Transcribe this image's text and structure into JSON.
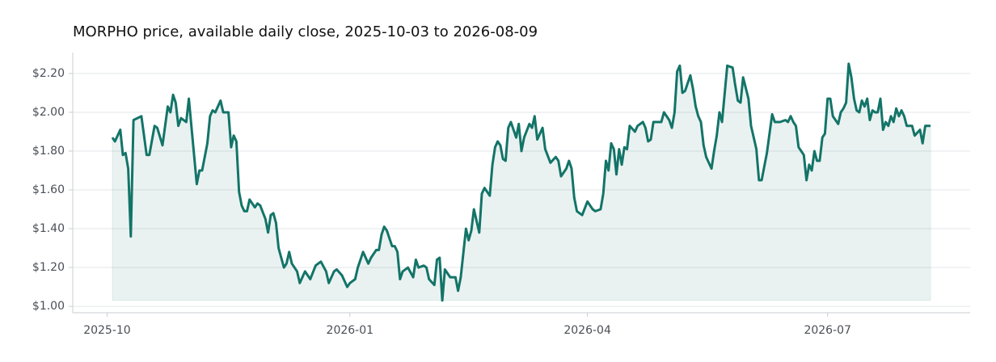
{
  "chart_data": {
    "type": "line",
    "title": "MORPHO price, available daily close, 2025-10-03 to 2026-08-09",
    "x": [
      "2025-10-03",
      "2025-10-04",
      "2025-10-06",
      "2025-10-07",
      "2025-10-08",
      "2025-10-09",
      "2025-10-10",
      "2025-10-11",
      "2025-10-14",
      "2025-10-16",
      "2025-10-17",
      "2025-10-19",
      "2025-10-20",
      "2025-10-22",
      "2025-10-24",
      "2025-10-25",
      "2025-10-26",
      "2025-10-27",
      "2025-10-28",
      "2025-10-29",
      "2025-10-31",
      "2025-11-01",
      "2025-11-04",
      "2025-11-05",
      "2025-11-06",
      "2025-11-08",
      "2025-11-09",
      "2025-11-10",
      "2025-11-11",
      "2025-11-13",
      "2025-11-14",
      "2025-11-16",
      "2025-11-17",
      "2025-11-18",
      "2025-11-19",
      "2025-11-20",
      "2025-11-21",
      "2025-11-22",
      "2025-11-23",
      "2025-11-24",
      "2025-11-26",
      "2025-11-27",
      "2025-11-28",
      "2025-11-30",
      "2025-12-01",
      "2025-12-02",
      "2025-12-03",
      "2025-12-04",
      "2025-12-05",
      "2025-12-07",
      "2025-12-08",
      "2025-12-09",
      "2025-12-10",
      "2025-12-12",
      "2025-12-13",
      "2025-12-15",
      "2025-12-17",
      "2025-12-19",
      "2025-12-20",
      "2025-12-21",
      "2025-12-23",
      "2025-12-24",
      "2025-12-26",
      "2025-12-27",
      "2025-12-29",
      "2025-12-31",
      "2026-01-01",
      "2026-01-03",
      "2026-01-04",
      "2026-01-06",
      "2026-01-08",
      "2026-01-09",
      "2026-01-11",
      "2026-01-12",
      "2026-01-13",
      "2026-01-14",
      "2026-01-15",
      "2026-01-17",
      "2026-01-18",
      "2026-01-19",
      "2026-01-20",
      "2026-01-21",
      "2026-01-23",
      "2026-01-25",
      "2026-01-26",
      "2026-01-27",
      "2026-01-29",
      "2026-01-30",
      "2026-01-31",
      "2026-02-02",
      "2026-02-03",
      "2026-02-04",
      "2026-02-05",
      "2026-02-06",
      "2026-02-08",
      "2026-02-10",
      "2026-02-11",
      "2026-02-12",
      "2026-02-14",
      "2026-02-15",
      "2026-02-16",
      "2026-02-17",
      "2026-02-19",
      "2026-02-20",
      "2026-02-21",
      "2026-02-23",
      "2026-02-24",
      "2026-02-25",
      "2026-02-26",
      "2026-02-27",
      "2026-02-28",
      "2026-03-01",
      "2026-03-02",
      "2026-03-03",
      "2026-03-05",
      "2026-03-06",
      "2026-03-07",
      "2026-03-08",
      "2026-03-10",
      "2026-03-11",
      "2026-03-12",
      "2026-03-13",
      "2026-03-15",
      "2026-03-16",
      "2026-03-18",
      "2026-03-20",
      "2026-03-21",
      "2026-03-22",
      "2026-03-24",
      "2026-03-25",
      "2026-03-26",
      "2026-03-27",
      "2026-03-28",
      "2026-03-29",
      "2026-03-30",
      "2026-04-01",
      "2026-04-03",
      "2026-04-04",
      "2026-04-06",
      "2026-04-07",
      "2026-04-08",
      "2026-04-09",
      "2026-04-10",
      "2026-04-11",
      "2026-04-12",
      "2026-04-13",
      "2026-04-14",
      "2026-04-15",
      "2026-04-16",
      "2026-04-17",
      "2026-04-19",
      "2026-04-20",
      "2026-04-22",
      "2026-04-23",
      "2026-04-24",
      "2026-04-25",
      "2026-04-26",
      "2026-04-27",
      "2026-04-29",
      "2026-04-30",
      "2026-05-02",
      "2026-05-03",
      "2026-05-04",
      "2026-05-05",
      "2026-05-06",
      "2026-05-07",
      "2026-05-08",
      "2026-05-10",
      "2026-05-11",
      "2026-05-12",
      "2026-05-13",
      "2026-05-14",
      "2026-05-15",
      "2026-05-16",
      "2026-05-18",
      "2026-05-19",
      "2026-05-20",
      "2026-05-21",
      "2026-05-22",
      "2026-05-24",
      "2026-05-26",
      "2026-05-27",
      "2026-05-28",
      "2026-05-29",
      "2026-05-30",
      "2026-06-01",
      "2026-06-02",
      "2026-06-04",
      "2026-06-05",
      "2026-06-06",
      "2026-06-08",
      "2026-06-10",
      "2026-06-11",
      "2026-06-13",
      "2026-06-15",
      "2026-06-16",
      "2026-06-17",
      "2026-06-18",
      "2026-06-19",
      "2026-06-20",
      "2026-06-21",
      "2026-06-22",
      "2026-06-23",
      "2026-06-24",
      "2026-06-25",
      "2026-06-26",
      "2026-06-27",
      "2026-06-28",
      "2026-06-29",
      "2026-06-30",
      "2026-07-01",
      "2026-07-02",
      "2026-07-03",
      "2026-07-04",
      "2026-07-05",
      "2026-07-06",
      "2026-07-07",
      "2026-07-08",
      "2026-07-09",
      "2026-07-10",
      "2026-07-11",
      "2026-07-12",
      "2026-07-13",
      "2026-07-14",
      "2026-07-15",
      "2026-07-16",
      "2026-07-17",
      "2026-07-18",
      "2026-07-19",
      "2026-07-20",
      "2026-07-21",
      "2026-07-22",
      "2026-07-23",
      "2026-07-24",
      "2026-07-25",
      "2026-07-26",
      "2026-07-27",
      "2026-07-28",
      "2026-07-29",
      "2026-07-30",
      "2026-07-31",
      "2026-08-02",
      "2026-08-03",
      "2026-08-05",
      "2026-08-06",
      "2026-08-07",
      "2026-08-09"
    ],
    "values": [
      1.87,
      1.85,
      1.91,
      1.78,
      1.79,
      1.71,
      1.36,
      1.96,
      1.98,
      1.78,
      1.78,
      1.93,
      1.92,
      1.83,
      2.03,
      2.0,
      2.09,
      2.05,
      1.93,
      1.97,
      1.95,
      2.07,
      1.63,
      1.7,
      1.7,
      1.84,
      1.98,
      2.01,
      2.0,
      2.06,
      2.0,
      2.0,
      1.82,
      1.88,
      1.85,
      1.59,
      1.52,
      1.49,
      1.49,
      1.55,
      1.51,
      1.53,
      1.52,
      1.45,
      1.38,
      1.47,
      1.48,
      1.43,
      1.3,
      1.2,
      1.22,
      1.28,
      1.22,
      1.18,
      1.12,
      1.18,
      1.14,
      1.21,
      1.22,
      1.23,
      1.18,
      1.12,
      1.18,
      1.19,
      1.16,
      1.1,
      1.12,
      1.14,
      1.2,
      1.28,
      1.22,
      1.25,
      1.29,
      1.29,
      1.37,
      1.41,
      1.39,
      1.31,
      1.31,
      1.28,
      1.14,
      1.18,
      1.2,
      1.15,
      1.24,
      1.2,
      1.21,
      1.2,
      1.14,
      1.11,
      1.24,
      1.25,
      1.03,
      1.19,
      1.15,
      1.15,
      1.08,
      1.15,
      1.4,
      1.34,
      1.39,
      1.5,
      1.38,
      1.58,
      1.61,
      1.57,
      1.73,
      1.82,
      1.85,
      1.83,
      1.76,
      1.75,
      1.92,
      1.95,
      1.87,
      1.94,
      1.8,
      1.87,
      1.94,
      1.92,
      1.98,
      1.86,
      1.92,
      1.81,
      1.74,
      1.77,
      1.75,
      1.67,
      1.71,
      1.75,
      1.71,
      1.56,
      1.49,
      1.48,
      1.47,
      1.54,
      1.5,
      1.49,
      1.5,
      1.58,
      1.75,
      1.7,
      1.84,
      1.81,
      1.68,
      1.81,
      1.73,
      1.82,
      1.81,
      1.93,
      1.9,
      1.93,
      1.95,
      1.92,
      1.85,
      1.86,
      1.95,
      1.95,
      1.95,
      2.0,
      1.96,
      1.92,
      2.0,
      2.21,
      2.24,
      2.1,
      2.11,
      2.19,
      2.12,
      2.03,
      1.98,
      1.95,
      1.83,
      1.77,
      1.71,
      1.8,
      1.88,
      2.0,
      1.95,
      2.24,
      2.23,
      2.14,
      2.06,
      2.05,
      2.18,
      2.07,
      1.93,
      1.81,
      1.65,
      1.65,
      1.79,
      1.99,
      1.95,
      1.95,
      1.96,
      1.95,
      1.98,
      1.95,
      1.93,
      1.82,
      1.8,
      1.78,
      1.65,
      1.73,
      1.7,
      1.8,
      1.75,
      1.75,
      1.87,
      1.89,
      2.07,
      2.07,
      1.98,
      1.96,
      1.94,
      2.0,
      2.02,
      2.05,
      2.25,
      2.18,
      2.07,
      2.01,
      2.0,
      2.06,
      2.03,
      2.07,
      1.96,
      2.01,
      2.0,
      2.0,
      2.07,
      1.91,
      1.95,
      1.93,
      1.98,
      1.95,
      2.02,
      1.98,
      2.01,
      1.98,
      1.93,
      1.93,
      1.88,
      1.91,
      1.84,
      1.93,
      1.93
    ],
    "color": "#137468",
    "xlim": [
      "2025-09-18",
      "2026-08-24"
    ],
    "xticks": [
      {
        "value": "2025-10-01",
        "label": "2025-10"
      },
      {
        "value": "2026-01-01",
        "label": "2026-01"
      },
      {
        "value": "2026-04-01",
        "label": "2026-04"
      },
      {
        "value": "2026-07-01",
        "label": "2026-07"
      }
    ],
    "ylim": [
      0.967,
      2.308
    ],
    "yticks": [
      {
        "value": 1,
        "label": "$1.00"
      },
      {
        "value": 1.2,
        "label": "$1.20"
      },
      {
        "value": 1.4,
        "label": "$1.40"
      },
      {
        "value": 1.6,
        "label": "$1.60"
      },
      {
        "value": 1.8,
        "label": "$1.80"
      },
      {
        "value": 2,
        "label": "$2.00"
      },
      {
        "value": 2.2,
        "label": "$2.20"
      }
    ],
    "grid": true
  }
}
